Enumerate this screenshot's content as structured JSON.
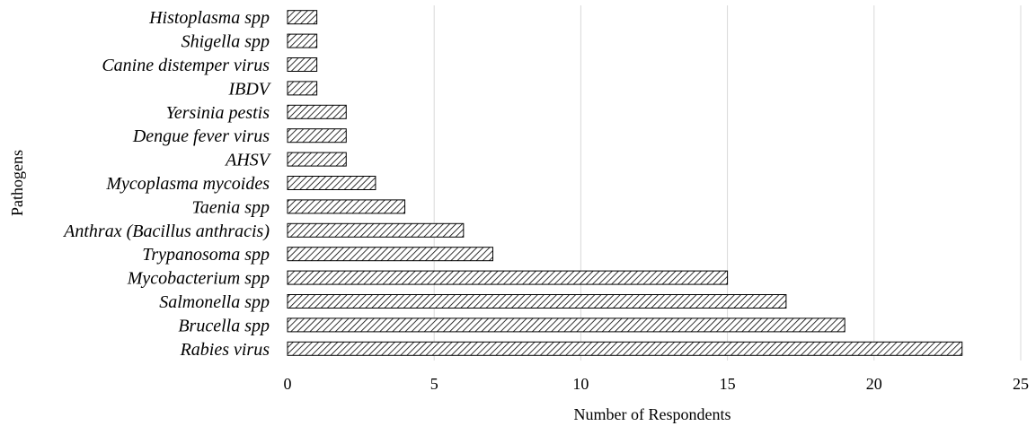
{
  "chart_data": {
    "type": "bar",
    "orientation": "horizontal",
    "categories": [
      "Histoplasma spp",
      "Shigella spp",
      "Canine distemper virus",
      "IBDV",
      "Yersinia pestis",
      "Dengue fever virus",
      "AHSV",
      "Mycoplasma mycoides",
      "Taenia spp",
      "Anthrax (Bacillus anthracis)",
      "Trypanosoma spp",
      "Mycobacterium spp",
      "Salmonella spp",
      "Brucella spp",
      "Rabies virus"
    ],
    "values": [
      1,
      1,
      1,
      1,
      2,
      2,
      2,
      3,
      4,
      6,
      7,
      15,
      17,
      19,
      23
    ],
    "xlabel": "Number of Respondents",
    "ylabel": "Pathogens",
    "xlim": [
      0,
      25
    ],
    "xticks": [
      "0",
      "5",
      "10",
      "15",
      "20",
      "25"
    ],
    "grid": "vertical",
    "bar_fill": "diagonal-hatch",
    "bar_color": "#000000"
  }
}
